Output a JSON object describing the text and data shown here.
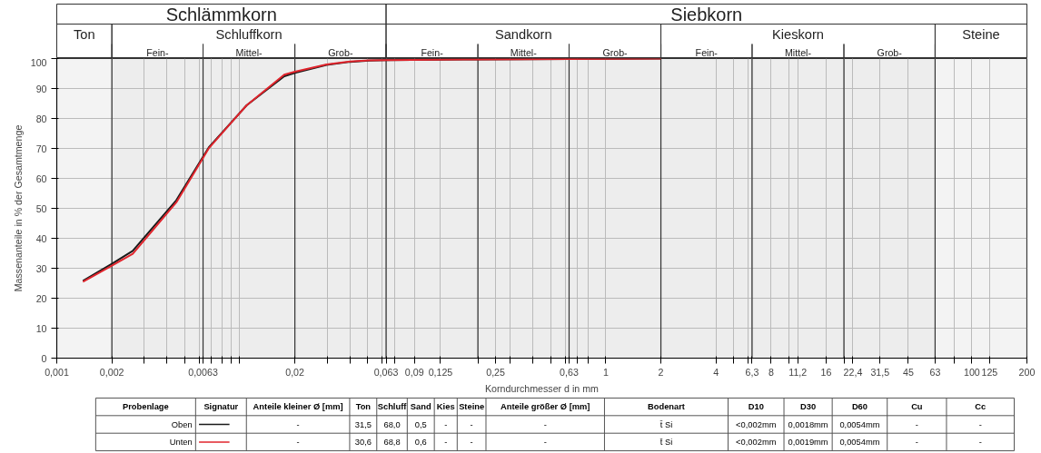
{
  "chart_data": {
    "type": "line",
    "xlabel": "Korndurchmesser d in mm",
    "ylabel": "Massenanteile in % der Gesamtmenge",
    "log": "x",
    "legend": "bottom",
    "xlim": [
      0.001,
      200
    ],
    "ylim": [
      0,
      100
    ],
    "yticks": [
      0,
      10,
      20,
      30,
      40,
      50,
      60,
      70,
      80,
      90,
      100
    ],
    "grid": true,
    "xticks": [
      {
        "value": 0.001,
        "label": "0,001"
      },
      {
        "value": 0.002,
        "label": "0,002"
      },
      {
        "value": 0.003,
        "label": null
      },
      {
        "value": 0.004,
        "label": null
      },
      {
        "value": 0.005,
        "label": null
      },
      {
        "value": 0.006,
        "label": null
      },
      {
        "value": 0.0063,
        "label": "0,0063"
      },
      {
        "value": 0.007,
        "label": null
      },
      {
        "value": 0.008,
        "label": null
      },
      {
        "value": 0.009,
        "label": null
      },
      {
        "value": 0.01,
        "label": null
      },
      {
        "value": 0.02,
        "label": "0,02"
      },
      {
        "value": 0.03,
        "label": null
      },
      {
        "value": 0.04,
        "label": null
      },
      {
        "value": 0.05,
        "label": null
      },
      {
        "value": 0.06,
        "label": null
      },
      {
        "value": 0.063,
        "label": "0,063"
      },
      {
        "value": 0.07,
        "label": null
      },
      {
        "value": 0.09,
        "label": "0,09"
      },
      {
        "value": 0.125,
        "label": "0,125"
      },
      {
        "value": 0.2,
        "label": null
      },
      {
        "value": 0.25,
        "label": "0,25"
      },
      {
        "value": 0.3,
        "label": null
      },
      {
        "value": 0.4,
        "label": null
      },
      {
        "value": 0.5,
        "label": null
      },
      {
        "value": 0.6,
        "label": null
      },
      {
        "value": 0.63,
        "label": "0,63"
      },
      {
        "value": 0.7,
        "label": null
      },
      {
        "value": 0.8,
        "label": null
      },
      {
        "value": 1,
        "label": "1"
      },
      {
        "value": 2,
        "label": "2"
      },
      {
        "value": 4,
        "label": "4"
      },
      {
        "value": 5,
        "label": null
      },
      {
        "value": 6,
        "label": null
      },
      {
        "value": 6.3,
        "label": "6,3"
      },
      {
        "value": 8,
        "label": "8"
      },
      {
        "value": 10,
        "label": null
      },
      {
        "value": 11.2,
        "label": "11,2"
      },
      {
        "value": 16,
        "label": "16"
      },
      {
        "value": 20,
        "label": null
      },
      {
        "value": 22.4,
        "label": "22,4"
      },
      {
        "value": 31.5,
        "label": "31,5"
      },
      {
        "value": 45,
        "label": "45"
      },
      {
        "value": 63,
        "label": "63"
      },
      {
        "value": 80,
        "label": null
      },
      {
        "value": 100,
        "label": "100"
      },
      {
        "value": 125,
        "label": "125"
      },
      {
        "value": 200,
        "label": "200"
      }
    ],
    "series": [
      {
        "name": "Oben",
        "color": "#1a1a1a",
        "x": [
          0.00139,
          0.002,
          0.0026,
          0.0045,
          0.0068,
          0.0109,
          0.0175,
          0.02,
          0.0298,
          0.04,
          0.0506,
          0.063,
          0.2,
          2
        ],
        "values": [
          25.8,
          31.5,
          35.8,
          52.7,
          70.5,
          84.4,
          94.1,
          95.2,
          97.9,
          98.9,
          99.3,
          99.5,
          99.7,
          100
        ]
      },
      {
        "name": "Unten",
        "color": "#e0242c",
        "x": [
          0.00139,
          0.002,
          0.0026,
          0.0045,
          0.0068,
          0.0109,
          0.0175,
          0.02,
          0.0298,
          0.04,
          0.0506,
          0.063,
          0.2,
          2
        ],
        "values": [
          25.5,
          30.9,
          34.8,
          52.0,
          70.2,
          84.4,
          94.6,
          95.6,
          98.0,
          99.0,
          99.4,
          99.5,
          99.7,
          100
        ]
      }
    ],
    "bands": [
      {
        "axis": "x",
        "from": 0.001,
        "to": 0.063,
        "label": "Schlämmkorn"
      },
      {
        "axis": "x",
        "from": 0.063,
        "to": 200,
        "label": "Siebkorn"
      },
      {
        "axis": "x",
        "from": 0.001,
        "to": 0.002,
        "label": "Ton"
      },
      {
        "axis": "x",
        "from": 0.002,
        "to": 0.063,
        "label": "Schluffkorn"
      },
      {
        "axis": "x",
        "from": 0.063,
        "to": 2,
        "label": "Sandkorn"
      },
      {
        "axis": "x",
        "from": 2,
        "to": 63,
        "label": "Kieskorn"
      },
      {
        "axis": "x",
        "from": 63,
        "to": 200,
        "label": "Steine"
      },
      {
        "axis": "x",
        "from": 0.002,
        "to": 0.0063,
        "label": "Fein-"
      },
      {
        "axis": "x",
        "from": 0.0063,
        "to": 0.02,
        "label": "Mittel-"
      },
      {
        "axis": "x",
        "from": 0.02,
        "to": 0.063,
        "label": "Grob-"
      },
      {
        "axis": "x",
        "from": 0.063,
        "to": 0.2,
        "label": "Fein-"
      },
      {
        "axis": "x",
        "from": 0.2,
        "to": 0.63,
        "label": "Mittel-"
      },
      {
        "axis": "x",
        "from": 0.63,
        "to": 2,
        "label": "Grob-"
      },
      {
        "axis": "x",
        "from": 2,
        "to": 6.3,
        "label": "Fein-"
      },
      {
        "axis": "x",
        "from": 6.3,
        "to": 20,
        "label": "Mittel-"
      },
      {
        "axis": "x",
        "from": 20,
        "to": 63,
        "label": "Grob-"
      }
    ],
    "annotations": [
      "Probenlage",
      "Signatur",
      "Anteile kleiner Ø [mm]",
      "Ton",
      "Schluff",
      "Sand",
      "Kies",
      "Steine",
      "Anteile größer Ø [mm]",
      "Bodenart",
      "D10",
      "D30",
      "D60",
      "Cu",
      "Cc",
      "-",
      "31,5",
      "68,0",
      "0,5",
      "-",
      "-",
      "-",
      "t̄ Si",
      "<0,002mm",
      "0,0018mm",
      "0,0054mm",
      "-",
      "-",
      "-",
      "30,6",
      "68,8",
      "0,6",
      "-",
      "-",
      "-",
      "t̄ Si",
      "<0,002mm",
      "0,0019mm",
      "0,0054mm",
      "-",
      "-"
    ]
  }
}
